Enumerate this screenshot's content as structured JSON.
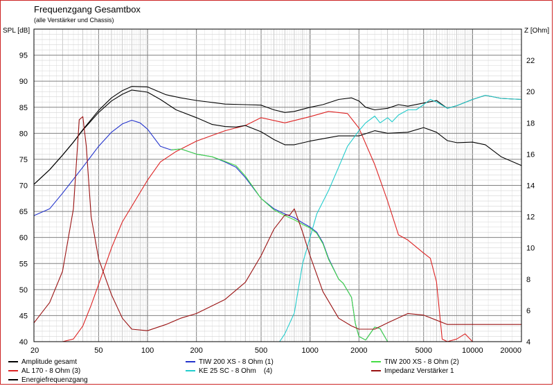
{
  "chart_data": {
    "type": "line",
    "title": "Frequenzgang Gesamtbox",
    "subtitle": "(alle Verstärker und Chassis)",
    "ylabel_left": "SPL [dB]",
    "ylabel_right": "Z [Ohm]",
    "x_scale": "log",
    "xlim": [
      20,
      20000
    ],
    "ylim_left": [
      40,
      100
    ],
    "ylim_right": [
      4,
      24
    ],
    "x_ticks": [
      "20",
      "50",
      "100",
      "200",
      "500",
      "1000",
      "2000",
      "5000",
      "10000",
      "20000"
    ],
    "x_tick_values": [
      20,
      50,
      100,
      200,
      500,
      1000,
      2000,
      5000,
      10000,
      20000
    ],
    "y_ticks_left": [
      "40",
      "45",
      "50",
      "55",
      "60",
      "65",
      "70",
      "75",
      "80",
      "85",
      "90",
      "95"
    ],
    "y_ticks_right": [
      "4",
      "6",
      "8",
      "10",
      "12",
      "14",
      "16",
      "18",
      "20",
      "22"
    ],
    "grid": true,
    "series": [
      {
        "name": "Amplitude gesamt",
        "color": "#000000",
        "axis": "left",
        "x": [
          20,
          25,
          30,
          35,
          40,
          50,
          60,
          70,
          80,
          100,
          130,
          160,
          200,
          300,
          400,
          500,
          600,
          700,
          800,
          1000,
          1200,
          1500,
          1800,
          2000,
          2200,
          2500,
          3000,
          3500,
          4000,
          5000,
          6000,
          7000,
          8000,
          10000,
          12000,
          15000,
          20000
        ],
        "y": [
          70.2,
          73,
          75.8,
          78.3,
          80.7,
          84.4,
          86.8,
          88.2,
          89,
          88.9,
          87.4,
          86.8,
          86.3,
          85.6,
          85.5,
          85.4,
          84.5,
          84,
          84.2,
          85,
          85.5,
          86.5,
          86.8,
          86.2,
          85,
          84.5,
          84.8,
          85.5,
          85.2,
          85.8,
          86.3,
          84.8,
          85.3,
          86.5,
          87.3,
          86.7,
          86.5
        ]
      },
      {
        "name": "AL 170 - 8 Ohm (3)",
        "color": "#dd2222",
        "axis": "left",
        "x": [
          20,
          30,
          35,
          40,
          45,
          50,
          60,
          70,
          80,
          100,
          120,
          150,
          200,
          300,
          400,
          500,
          700,
          1000,
          1300,
          1700,
          2000,
          2500,
          3000,
          3500,
          4000,
          5000,
          5500,
          6000,
          6500,
          7000,
          8000,
          9000,
          10000
        ],
        "y": [
          40,
          40,
          40.5,
          43,
          47,
          51,
          58,
          63,
          66,
          71,
          74.5,
          76.5,
          78.5,
          80.5,
          81.5,
          83,
          82,
          83.2,
          84.2,
          83.8,
          81,
          74,
          67,
          60.5,
          59.5,
          57,
          56,
          51.5,
          40.5,
          40,
          40.5,
          41.5,
          40
        ]
      },
      {
        "name": "Energiefrequenzgang",
        "color": "#000000",
        "axis": "left",
        "x": [
          20,
          25,
          30,
          35,
          40,
          50,
          60,
          70,
          80,
          100,
          120,
          150,
          200,
          250,
          300,
          350,
          400,
          500,
          600,
          700,
          800,
          1000,
          1500,
          2000,
          2500,
          3000,
          4000,
          5000,
          6000,
          7000,
          8000,
          10000,
          12000,
          15000,
          20000
        ],
        "y": [
          70.2,
          73,
          75.8,
          78.3,
          80.6,
          84,
          86.2,
          87.5,
          88.3,
          87.9,
          86.5,
          84.5,
          83,
          81.7,
          81.3,
          81.2,
          81.5,
          80.3,
          78.8,
          77.8,
          77.8,
          78.5,
          79.5,
          79.5,
          80.5,
          80,
          80.2,
          81.1,
          80.2,
          78.6,
          78.2,
          78.3,
          77.8,
          75.5,
          73.8
        ]
      },
      {
        "name": "TIW 200 XS - 8 Ohm (1)",
        "color": "#2233cc",
        "axis": "left",
        "x": [
          20,
          25,
          30,
          40,
          50,
          60,
          70,
          80,
          90,
          100,
          120,
          140,
          160,
          200,
          250,
          300,
          350,
          400,
          500,
          600,
          700,
          800,
          900,
          1000,
          1100,
          1200,
          1300,
          1500,
          1600,
          1800,
          1900,
          2000,
          2200,
          2500,
          2700,
          3000,
          3500,
          5000,
          10000,
          20000
        ],
        "y": [
          64.2,
          65.5,
          68.5,
          73.5,
          77.5,
          80.2,
          81.8,
          82.5,
          82,
          80.8,
          77.5,
          76.8,
          77,
          76,
          75.5,
          74.5,
          73.5,
          71.5,
          67.5,
          65.5,
          64.5,
          63.8,
          62.8,
          62,
          61,
          59,
          56,
          52,
          51.2,
          48.5,
          43.5,
          41,
          40.3,
          42.8,
          42.5,
          40,
          40,
          40,
          40,
          40
        ]
      },
      {
        "name": "KE 25 SC - 8 Ohm    (4)",
        "color": "#22cccc",
        "axis": "left",
        "x": [
          650,
          700,
          800,
          900,
          1000,
          1100,
          1300,
          1500,
          1700,
          2000,
          2200,
          2500,
          2700,
          3000,
          3200,
          3500,
          4000,
          4500,
          5000,
          5500,
          6000,
          7000,
          8000,
          10000,
          12000,
          15000,
          20000
        ],
        "y": [
          40,
          41.5,
          45.5,
          55,
          60,
          64.5,
          69,
          73.5,
          77.5,
          80.5,
          82,
          83.3,
          82,
          83,
          82.2,
          83.5,
          84.5,
          84.5,
          85.5,
          86.5,
          86,
          84.8,
          85.3,
          86.5,
          87.3,
          86.7,
          86.5
        ]
      },
      {
        "name": "TIW 200 XS - 8 Ohm (2)",
        "color": "#44dd44",
        "axis": "left",
        "x": [
          140,
          160,
          200,
          250,
          300,
          350,
          400,
          500,
          600,
          700,
          800,
          900,
          1000,
          1100,
          1200,
          1300,
          1500,
          1600,
          1800,
          1900,
          2000,
          2200,
          2500,
          2700,
          3000
        ],
        "y": [
          76.8,
          77,
          76,
          75.5,
          74.6,
          73.8,
          71.8,
          67.5,
          65.3,
          64.2,
          63.4,
          62.5,
          61.8,
          60.8,
          58.8,
          55.8,
          52,
          51.2,
          48.5,
          43.5,
          41,
          40.3,
          42.8,
          42.5,
          40
        ]
      },
      {
        "name": "Impedanz Verstärker 1",
        "color": "#991111",
        "axis": "right",
        "x": [
          20,
          25,
          30,
          35,
          38,
          40,
          42,
          45,
          50,
          60,
          70,
          80,
          100,
          130,
          160,
          200,
          300,
          400,
          500,
          600,
          700,
          750,
          800,
          900,
          1000,
          1200,
          1500,
          1800,
          2000,
          2500,
          3000,
          4000,
          5000,
          7000,
          10000,
          20000
        ],
        "y": [
          5.2,
          6.5,
          8.5,
          12.5,
          18.2,
          18.4,
          16.5,
          12,
          9.3,
          7,
          5.5,
          4.8,
          4.7,
          5.1,
          5.5,
          5.8,
          6.7,
          7.8,
          9.5,
          11.2,
          12.1,
          12.1,
          12.5,
          11,
          9.5,
          7.2,
          5.5,
          5,
          4.8,
          4.8,
          5.2,
          5.8,
          5.7,
          5.1,
          5.1,
          5.1
        ]
      }
    ],
    "legend": [
      {
        "label": "Amplitude gesamt",
        "color": "#000000",
        "col": 0,
        "row": 0
      },
      {
        "label": "AL 170 - 8 Ohm (3)",
        "color": "#dd2222",
        "col": 0,
        "row": 1
      },
      {
        "label": "Energiefrequenzgang",
        "color": "#000000",
        "col": 0,
        "row": 2
      },
      {
        "label": "TIW 200 XS - 8 Ohm (1)",
        "color": "#2233cc",
        "col": 1,
        "row": 0
      },
      {
        "label": "KE 25 SC - 8 Ohm    (4)",
        "color": "#22cccc",
        "col": 1,
        "row": 1
      },
      {
        "label": "TIW 200 XS - 8 Ohm (2)",
        "color": "#44dd44",
        "col": 2,
        "row": 0
      },
      {
        "label": "Impedanz Verstärker 1",
        "color": "#991111",
        "col": 2,
        "row": 1
      }
    ]
  }
}
